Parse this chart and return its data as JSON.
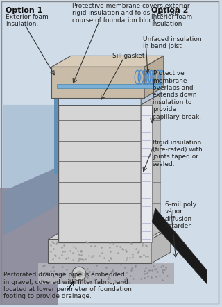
{
  "bg_color": "#d0dce8",
  "title": "",
  "option1_label": "Option 1",
  "option1_sub": "Exterior foam\ninsulation.",
  "option2_label": "Option 2",
  "option2_sub": "Interior foam\ninsulation",
  "annotations": {
    "membrane_top": "Protective membrane covers exterior\nrigid insulation and folds over top\ncourse of foundation block.",
    "band_joist": "Unfaced insulation\nin band joist",
    "sill_gasket": "Sill gasket",
    "prot_membrane": "Protective\nmembrane\noverlaps and\nextends down\ninsulation to\nprovide\ncapillary break.",
    "rigid_insulation": "Rigid insulation\n(fire-rated) with\njoints taped or\nsealed.",
    "vapor_retarder": "6-mil poly\nvapor\ndiffusion\nretarder",
    "drainage": "Perforated drainage pipe is embedded\nin gravel, covered with filter fabric, and\nlocated at lower perimeter of foundation\nfooting to provide drainage."
  },
  "colors": {
    "wall_light": "#d8d8d8",
    "wall_dark": "#b0b0b0",
    "wall_outline": "#555555",
    "sill_blue": "#a8c8e8",
    "floor_beam": "#c8c8c8",
    "insulation_blue": "#6699cc",
    "footing_stipple": "#c8c8c8",
    "gravel": "#b8b8c8",
    "exterior_shadow": "#a0b0c8",
    "black_poly": "#222222",
    "ground_gray": "#9898a8"
  }
}
